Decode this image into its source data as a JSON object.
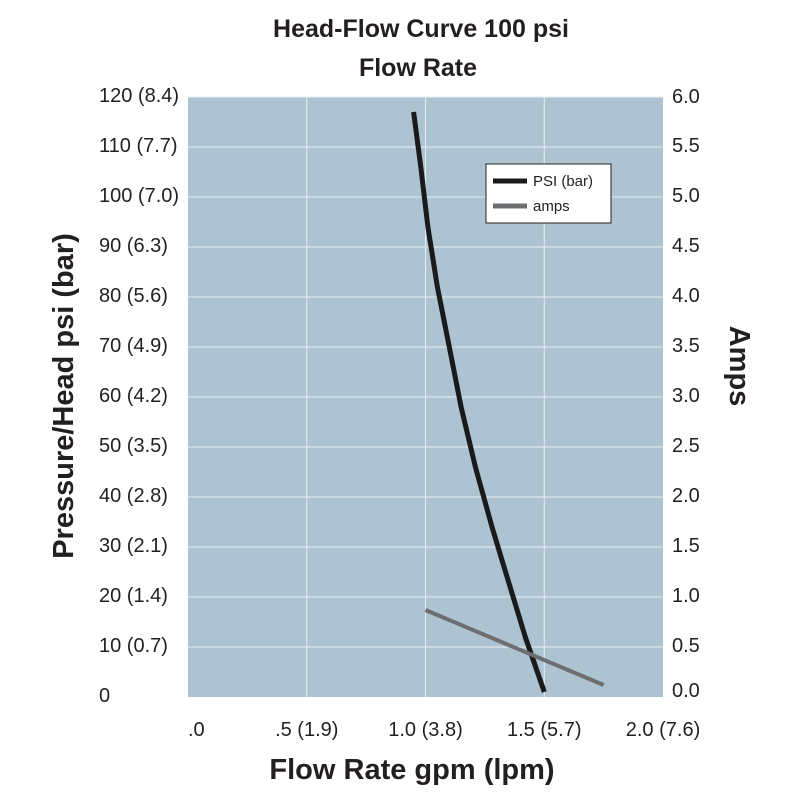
{
  "chart_data": {
    "type": "line",
    "title": "Head-Flow Curve 100 psi",
    "subtitle": "Flow Rate",
    "xlabel": "Flow Rate gpm (lpm)",
    "ylabel": "Pressure/Head psi (bar)",
    "y2label": "Amps",
    "xlim": [
      0,
      2.0
    ],
    "ylim": [
      0,
      120
    ],
    "y2lim": [
      0,
      6.0
    ],
    "x_ticks": [
      {
        "value": 0,
        "label": ".0"
      },
      {
        "value": 0.5,
        "label": ".5 (1.9)"
      },
      {
        "value": 1.0,
        "label": "1.0 (3.8)"
      },
      {
        "value": 1.5,
        "label": "1.5 (5.7)"
      },
      {
        "value": 2.0,
        "label": "2.0 (7.6)"
      }
    ],
    "y_ticks": [
      {
        "value": 0,
        "label": "0"
      },
      {
        "value": 10,
        "label": "10 (0.7)"
      },
      {
        "value": 20,
        "label": "20 (1.4)"
      },
      {
        "value": 30,
        "label": "30 (2.1)"
      },
      {
        "value": 40,
        "label": "40 (2.8)"
      },
      {
        "value": 50,
        "label": "50 (3.5)"
      },
      {
        "value": 60,
        "label": "60 (4.2)"
      },
      {
        "value": 70,
        "label": "70 (4.9)"
      },
      {
        "value": 80,
        "label": "80 (5.6)"
      },
      {
        "value": 90,
        "label": "90 (6.3)"
      },
      {
        "value": 100,
        "label": "100 (7.0)"
      },
      {
        "value": 110,
        "label": "110 (7.7)"
      },
      {
        "value": 120,
        "label": "120 (8.4)"
      }
    ],
    "y2_ticks": [
      {
        "value": 0.0,
        "label": "0.0"
      },
      {
        "value": 0.5,
        "label": "0.5"
      },
      {
        "value": 1.0,
        "label": "1.0"
      },
      {
        "value": 1.5,
        "label": "1.5"
      },
      {
        "value": 2.0,
        "label": "2.0"
      },
      {
        "value": 2.5,
        "label": "2.5"
      },
      {
        "value": 3.0,
        "label": "3.0"
      },
      {
        "value": 3.5,
        "label": "3.5"
      },
      {
        "value": 4.0,
        "label": "4.0"
      },
      {
        "value": 4.5,
        "label": "4.5"
      },
      {
        "value": 5.0,
        "label": "5.0"
      },
      {
        "value": 5.5,
        "label": "5.5"
      },
      {
        "value": 6.0,
        "label": "6.0"
      }
    ],
    "grid": true,
    "legend_position": "top-right",
    "series": [
      {
        "name": "PSI (bar)",
        "axis": "left",
        "color": "#1a1a1a",
        "points": [
          [
            0.95,
            117
          ],
          [
            0.98,
            106
          ],
          [
            1.01,
            94
          ],
          [
            1.05,
            82
          ],
          [
            1.1,
            70
          ],
          [
            1.15,
            58
          ],
          [
            1.21,
            46
          ],
          [
            1.28,
            34
          ],
          [
            1.35,
            23
          ],
          [
            1.42,
            12
          ],
          [
            1.5,
            1
          ]
        ]
      },
      {
        "name": "amps",
        "axis": "right",
        "color": "#6d6e71",
        "points": [
          [
            1.0,
            0.87
          ],
          [
            1.75,
            0.12
          ]
        ]
      }
    ],
    "colors": {
      "plot_background": "#adc3d1",
      "grid": "#e6eef3",
      "text": "#231f20"
    }
  }
}
